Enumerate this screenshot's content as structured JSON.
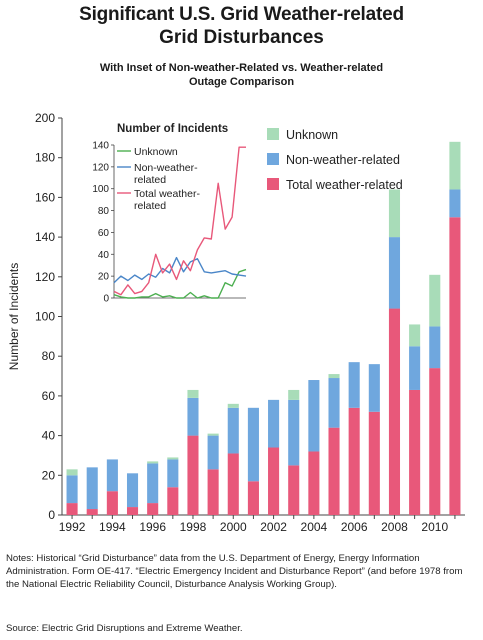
{
  "title_line1": "Significant U.S. Grid Weather-related",
  "title_line2": "Grid Disturbances",
  "subtitle_line1": "With Inset of Non-weather-Related vs. Weather-related",
  "subtitle_line2": "Outage Comparison",
  "notes": "Notes: Historical “Grid Disturbance” data from the U.S. Department of Energy, Energy Information Administration. Form OE-417. “Electric Emergency Incident and Disturbance Report” (and before 1978 from the National Electric Reliability Council, Disturbance Analysis Working Group).",
  "source": "Source: Electric Grid Disruptions and Extreme Weather.",
  "colors": {
    "weather": "#e8587a",
    "nonweather": "#6fa7de",
    "unknown": "#a8dcb8",
    "inset_weather": "#e8587a",
    "inset_nonweather": "#4a86c8",
    "inset_unknown": "#4caf50"
  },
  "chart_data": [
    {
      "type": "bar",
      "stacked": true,
      "ylabel": "Number of Incidents",
      "ylim": [
        0,
        200
      ],
      "yticks": [
        0,
        20,
        40,
        60,
        80,
        100,
        120,
        140,
        160,
        180,
        200
      ],
      "xtick_labels": [
        "1992",
        "1994",
        "1996",
        "1998",
        "2000",
        "2002",
        "2004",
        "2006",
        "2008",
        "2010"
      ],
      "categories": [
        "1992",
        "1993",
        "1994",
        "1995",
        "1996",
        "1997",
        "1998",
        "1999",
        "2000",
        "2001",
        "2002",
        "2003",
        "2004",
        "2005",
        "2006",
        "2007",
        "2008",
        "2009",
        "2010",
        "2011"
      ],
      "legend_position": "top-right",
      "series": [
        {
          "name": "Total weather-related",
          "color_key": "weather",
          "values": [
            6,
            3,
            12,
            4,
            6,
            14,
            40,
            23,
            31,
            17,
            34,
            25,
            32,
            44,
            54,
            52,
            104,
            63,
            74,
            150
          ]
        },
        {
          "name": "Non-weather-related",
          "color_key": "nonweather",
          "values": [
            14,
            21,
            16,
            17,
            20,
            14,
            19,
            17,
            23,
            37,
            24,
            33,
            36,
            25,
            23,
            24,
            36,
            22,
            21,
            14
          ]
        },
        {
          "name": "Unknown",
          "color_key": "unknown",
          "values": [
            3,
            0,
            0,
            0,
            1,
            1,
            4,
            1,
            2,
            0,
            0,
            5,
            0,
            2,
            0,
            0,
            24,
            11,
            26,
            24
          ]
        }
      ]
    },
    {
      "type": "line",
      "title": "Number of Incidents",
      "ylim": [
        0,
        140
      ],
      "yticks": [
        0,
        20,
        40,
        60,
        80,
        100,
        120,
        140
      ],
      "legend_position": "top-left",
      "x": [
        "1992",
        "1993",
        "1994",
        "1995",
        "1996",
        "1997",
        "1998",
        "1999",
        "2000",
        "2001",
        "2002",
        "2003",
        "2004",
        "2005",
        "2006",
        "2007",
        "2008",
        "2009",
        "2010",
        "2011"
      ],
      "series": [
        {
          "name": "Unknown",
          "color_key": "inset_unknown",
          "values": [
            3,
            1,
            0,
            0,
            1,
            1,
            4,
            1,
            2,
            0,
            0,
            5,
            0,
            2,
            0,
            0,
            14,
            11,
            24,
            26
          ]
        },
        {
          "name": "Non-weather-related",
          "color_key": "inset_nonweather",
          "values": [
            14,
            20,
            16,
            21,
            17,
            22,
            19,
            27,
            23,
            37,
            24,
            33,
            36,
            24,
            23,
            24,
            25,
            22,
            21,
            20
          ]
        },
        {
          "name": "Total weather-related",
          "color_key": "inset_weather",
          "values": [
            6,
            3,
            12,
            4,
            6,
            14,
            40,
            23,
            31,
            17,
            34,
            25,
            44,
            55,
            54,
            105,
            63,
            74,
            138,
            138
          ]
        }
      ]
    }
  ]
}
